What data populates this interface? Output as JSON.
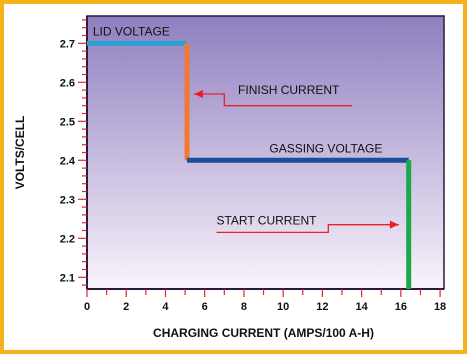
{
  "chart_data": {
    "type": "line",
    "title": "",
    "xlabel": "CHARGING CURRENT (AMPS/100 A-H)",
    "ylabel": "VOLTS/CELL",
    "xlim": [
      0,
      18.2
    ],
    "ylim": [
      2.07,
      2.77
    ],
    "x_ticks": [
      0,
      2,
      4,
      6,
      8,
      10,
      12,
      14,
      16,
      18
    ],
    "x_tick_labels": [
      "0",
      "2",
      "4",
      "6",
      "8",
      "10",
      "12",
      "14",
      "16",
      "18"
    ],
    "x_minor_step": 1,
    "y_ticks": [
      2.1,
      2.2,
      2.3,
      2.4,
      2.5,
      2.6,
      2.7
    ],
    "y_tick_labels": [
      "2.1",
      "2.2",
      "2.3",
      "2.4",
      "2.5",
      "2.6",
      "2.7"
    ],
    "y_minor_step": 0.02,
    "grid": false,
    "segments": [
      {
        "name": "LID VOLTAGE",
        "color": "#2a9fd0",
        "x": [
          0,
          5.1
        ],
        "y": [
          2.7,
          2.7
        ]
      },
      {
        "name": "FINISH CURRENT",
        "color": "#f07a30",
        "x": [
          5.1,
          5.1
        ],
        "y": [
          2.7,
          2.4
        ]
      },
      {
        "name": "GASSING VOLTAGE",
        "color": "#1a4d9a",
        "x": [
          5.1,
          16.4
        ],
        "y": [
          2.4,
          2.4
        ]
      },
      {
        "name": "START CURRENT",
        "color": "#1aa84a",
        "x": [
          16.4,
          16.4
        ],
        "y": [
          2.4,
          2.07
        ]
      }
    ],
    "annotations": [
      {
        "text": "LID VOLTAGE",
        "at": [
          0.3,
          2.72
        ],
        "anchor": "start"
      },
      {
        "text": "FINISH CURRENT",
        "at": [
          7.7,
          2.57
        ],
        "anchor": "start",
        "arrow": [
          [
            13.5,
            2.54
          ],
          [
            7.0,
            2.54
          ],
          [
            7.0,
            2.57
          ],
          [
            5.45,
            2.57
          ]
        ]
      },
      {
        "text": "GASSING VOLTAGE",
        "at": [
          9.3,
          2.42
        ],
        "anchor": "start"
      },
      {
        "text": "START CURRENT",
        "at": [
          6.6,
          2.235
        ],
        "anchor": "start",
        "arrow": [
          [
            6.6,
            2.215
          ],
          [
            12.3,
            2.215
          ],
          [
            12.3,
            2.235
          ],
          [
            15.9,
            2.235
          ]
        ]
      }
    ]
  },
  "colors": {
    "frame": "#f5b21a",
    "plot_top": "#8f7fc0",
    "plot_bottom": "#faf3fb",
    "axis": "#2a1a3a",
    "tick": "#e8202a",
    "arrow": "#e8202a",
    "text": "#111111"
  }
}
